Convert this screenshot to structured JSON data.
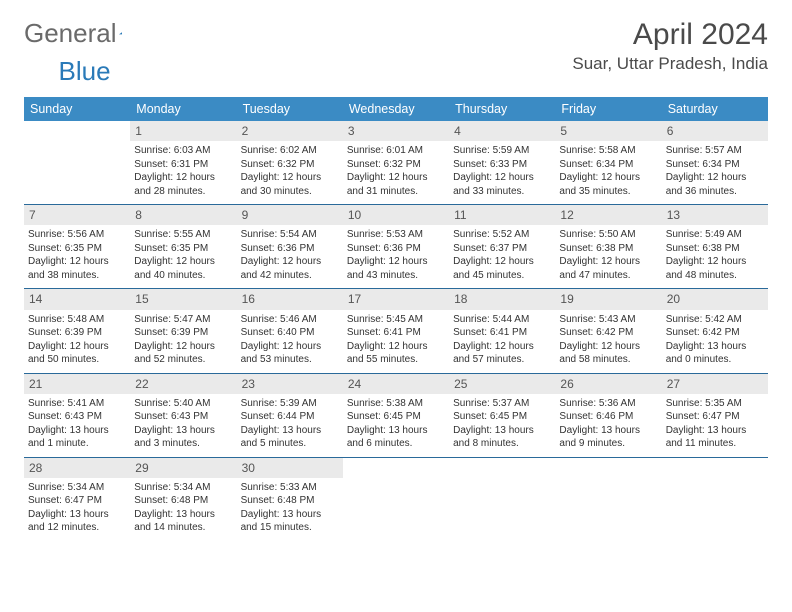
{
  "brand": {
    "part1": "General",
    "part2": "Blue"
  },
  "title": "April 2024",
  "location": "Suar, Uttar Pradesh, India",
  "colors": {
    "header_bg": "#3b8bc4",
    "header_text": "#ffffff",
    "daynum_bg": "#eaeaea",
    "week_border": "#2a6a9a",
    "brand_gray": "#6a6a6a",
    "brand_blue": "#2a7ab8",
    "text": "#333333"
  },
  "days_of_week": [
    "Sunday",
    "Monday",
    "Tuesday",
    "Wednesday",
    "Thursday",
    "Friday",
    "Saturday"
  ],
  "weeks": [
    [
      {
        "n": "",
        "empty": true
      },
      {
        "n": "1",
        "sr": "6:03 AM",
        "ss": "6:31 PM",
        "dl": "12 hours and 28 minutes."
      },
      {
        "n": "2",
        "sr": "6:02 AM",
        "ss": "6:32 PM",
        "dl": "12 hours and 30 minutes."
      },
      {
        "n": "3",
        "sr": "6:01 AM",
        "ss": "6:32 PM",
        "dl": "12 hours and 31 minutes."
      },
      {
        "n": "4",
        "sr": "5:59 AM",
        "ss": "6:33 PM",
        "dl": "12 hours and 33 minutes."
      },
      {
        "n": "5",
        "sr": "5:58 AM",
        "ss": "6:34 PM",
        "dl": "12 hours and 35 minutes."
      },
      {
        "n": "6",
        "sr": "5:57 AM",
        "ss": "6:34 PM",
        "dl": "12 hours and 36 minutes."
      }
    ],
    [
      {
        "n": "7",
        "sr": "5:56 AM",
        "ss": "6:35 PM",
        "dl": "12 hours and 38 minutes."
      },
      {
        "n": "8",
        "sr": "5:55 AM",
        "ss": "6:35 PM",
        "dl": "12 hours and 40 minutes."
      },
      {
        "n": "9",
        "sr": "5:54 AM",
        "ss": "6:36 PM",
        "dl": "12 hours and 42 minutes."
      },
      {
        "n": "10",
        "sr": "5:53 AM",
        "ss": "6:36 PM",
        "dl": "12 hours and 43 minutes."
      },
      {
        "n": "11",
        "sr": "5:52 AM",
        "ss": "6:37 PM",
        "dl": "12 hours and 45 minutes."
      },
      {
        "n": "12",
        "sr": "5:50 AM",
        "ss": "6:38 PM",
        "dl": "12 hours and 47 minutes."
      },
      {
        "n": "13",
        "sr": "5:49 AM",
        "ss": "6:38 PM",
        "dl": "12 hours and 48 minutes."
      }
    ],
    [
      {
        "n": "14",
        "sr": "5:48 AM",
        "ss": "6:39 PM",
        "dl": "12 hours and 50 minutes."
      },
      {
        "n": "15",
        "sr": "5:47 AM",
        "ss": "6:39 PM",
        "dl": "12 hours and 52 minutes."
      },
      {
        "n": "16",
        "sr": "5:46 AM",
        "ss": "6:40 PM",
        "dl": "12 hours and 53 minutes."
      },
      {
        "n": "17",
        "sr": "5:45 AM",
        "ss": "6:41 PM",
        "dl": "12 hours and 55 minutes."
      },
      {
        "n": "18",
        "sr": "5:44 AM",
        "ss": "6:41 PM",
        "dl": "12 hours and 57 minutes."
      },
      {
        "n": "19",
        "sr": "5:43 AM",
        "ss": "6:42 PM",
        "dl": "12 hours and 58 minutes."
      },
      {
        "n": "20",
        "sr": "5:42 AM",
        "ss": "6:42 PM",
        "dl": "13 hours and 0 minutes."
      }
    ],
    [
      {
        "n": "21",
        "sr": "5:41 AM",
        "ss": "6:43 PM",
        "dl": "13 hours and 1 minute."
      },
      {
        "n": "22",
        "sr": "5:40 AM",
        "ss": "6:43 PM",
        "dl": "13 hours and 3 minutes."
      },
      {
        "n": "23",
        "sr": "5:39 AM",
        "ss": "6:44 PM",
        "dl": "13 hours and 5 minutes."
      },
      {
        "n": "24",
        "sr": "5:38 AM",
        "ss": "6:45 PM",
        "dl": "13 hours and 6 minutes."
      },
      {
        "n": "25",
        "sr": "5:37 AM",
        "ss": "6:45 PM",
        "dl": "13 hours and 8 minutes."
      },
      {
        "n": "26",
        "sr": "5:36 AM",
        "ss": "6:46 PM",
        "dl": "13 hours and 9 minutes."
      },
      {
        "n": "27",
        "sr": "5:35 AM",
        "ss": "6:47 PM",
        "dl": "13 hours and 11 minutes."
      }
    ],
    [
      {
        "n": "28",
        "sr": "5:34 AM",
        "ss": "6:47 PM",
        "dl": "13 hours and 12 minutes."
      },
      {
        "n": "29",
        "sr": "5:34 AM",
        "ss": "6:48 PM",
        "dl": "13 hours and 14 minutes."
      },
      {
        "n": "30",
        "sr": "5:33 AM",
        "ss": "6:48 PM",
        "dl": "13 hours and 15 minutes."
      },
      {
        "n": "",
        "empty": true
      },
      {
        "n": "",
        "empty": true
      },
      {
        "n": "",
        "empty": true
      },
      {
        "n": "",
        "empty": true
      }
    ]
  ],
  "labels": {
    "sunrise": "Sunrise:",
    "sunset": "Sunset:",
    "daylight": "Daylight:"
  }
}
